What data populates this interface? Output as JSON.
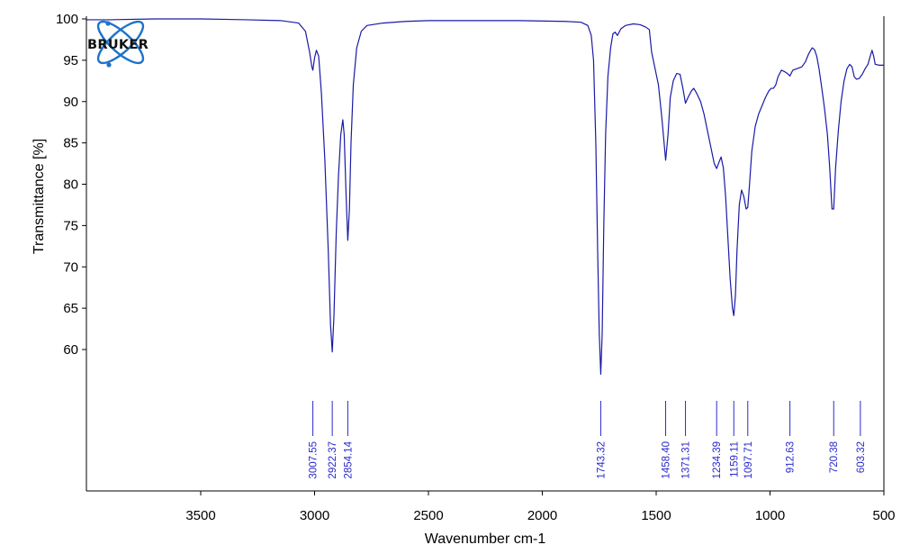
{
  "logo": {
    "text": "BRUKER",
    "color": "#1e73c8"
  },
  "colors": {
    "spectrum": "#1a1aa6",
    "peak_marker": "#2a2acc",
    "axis": "#000000"
  },
  "chart_data": {
    "type": "line",
    "title": "",
    "xlabel": "Wavenumber cm-1",
    "ylabel": "Transmittance [%]",
    "xlim": [
      4000,
      500
    ],
    "x_reversed": true,
    "ylim": [
      52,
      100
    ],
    "xticks": [
      3500,
      3000,
      2500,
      2000,
      1500,
      1000,
      500
    ],
    "xtick_labels": [
      "3500",
      "3000",
      "2500",
      "2000",
      "1500",
      "1000",
      "500"
    ],
    "yticks": [
      60,
      65,
      70,
      75,
      80,
      85,
      90,
      95,
      100
    ],
    "ytick_labels": [
      "60",
      "65",
      "70",
      "75",
      "80",
      "85",
      "90",
      "95",
      "100"
    ],
    "grid": false,
    "series": [
      {
        "points": [
          [
            4000,
            99.9
          ],
          [
            3900,
            99.9
          ],
          [
            3700,
            100.0
          ],
          [
            3500,
            100.0
          ],
          [
            3300,
            99.9
          ],
          [
            3150,
            99.8
          ],
          [
            3070,
            99.5
          ],
          [
            3040,
            98.5
          ],
          [
            3022,
            96.0
          ],
          [
            3012,
            94.2
          ],
          [
            3007.55,
            93.8
          ],
          [
            3000,
            95.3
          ],
          [
            2992,
            96.2
          ],
          [
            2982,
            95.5
          ],
          [
            2970,
            91.0
          ],
          [
            2955,
            83.0
          ],
          [
            2940,
            72.0
          ],
          [
            2930,
            63.0
          ],
          [
            2922.37,
            59.7
          ],
          [
            2915,
            64.0
          ],
          [
            2905,
            74.0
          ],
          [
            2895,
            81.0
          ],
          [
            2885,
            86.0
          ],
          [
            2876,
            87.8
          ],
          [
            2870,
            86.0
          ],
          [
            2862,
            79.0
          ],
          [
            2854.14,
            73.2
          ],
          [
            2847,
            77.0
          ],
          [
            2840,
            85.0
          ],
          [
            2830,
            92.0
          ],
          [
            2815,
            96.5
          ],
          [
            2795,
            98.5
          ],
          [
            2770,
            99.2
          ],
          [
            2700,
            99.5
          ],
          [
            2600,
            99.7
          ],
          [
            2500,
            99.8
          ],
          [
            2300,
            99.8
          ],
          [
            2100,
            99.8
          ],
          [
            1900,
            99.7
          ],
          [
            1830,
            99.6
          ],
          [
            1800,
            99.2
          ],
          [
            1785,
            98.0
          ],
          [
            1775,
            95.0
          ],
          [
            1765,
            85.0
          ],
          [
            1757,
            72.0
          ],
          [
            1750,
            62.0
          ],
          [
            1743.32,
            57.0
          ],
          [
            1737,
            62.0
          ],
          [
            1730,
            75.0
          ],
          [
            1722,
            86.0
          ],
          [
            1712,
            93.0
          ],
          [
            1700,
            96.5
          ],
          [
            1690,
            98.2
          ],
          [
            1680,
            98.4
          ],
          [
            1670,
            98.0
          ],
          [
            1655,
            98.8
          ],
          [
            1635,
            99.2
          ],
          [
            1600,
            99.4
          ],
          [
            1570,
            99.3
          ],
          [
            1545,
            99.0
          ],
          [
            1530,
            98.7
          ],
          [
            1520,
            96.0
          ],
          [
            1505,
            94.0
          ],
          [
            1490,
            92.0
          ],
          [
            1475,
            88.0
          ],
          [
            1458.4,
            82.9
          ],
          [
            1448,
            86.0
          ],
          [
            1438,
            90.5
          ],
          [
            1425,
            92.5
          ],
          [
            1410,
            93.4
          ],
          [
            1395,
            93.3
          ],
          [
            1382,
            91.5
          ],
          [
            1371.31,
            89.8
          ],
          [
            1360,
            90.5
          ],
          [
            1345,
            91.3
          ],
          [
            1335,
            91.6
          ],
          [
            1322,
            91.0
          ],
          [
            1305,
            90.0
          ],
          [
            1290,
            88.5
          ],
          [
            1275,
            86.5
          ],
          [
            1260,
            84.5
          ],
          [
            1245,
            82.5
          ],
          [
            1234.39,
            81.9
          ],
          [
            1225,
            82.6
          ],
          [
            1215,
            83.3
          ],
          [
            1205,
            82.0
          ],
          [
            1195,
            78.5
          ],
          [
            1185,
            73.5
          ],
          [
            1175,
            68.5
          ],
          [
            1165,
            65.0
          ],
          [
            1159.11,
            64.1
          ],
          [
            1152,
            66.5
          ],
          [
            1145,
            72.0
          ],
          [
            1135,
            77.5
          ],
          [
            1125,
            79.3
          ],
          [
            1115,
            78.5
          ],
          [
            1105,
            77.0
          ],
          [
            1097.71,
            77.2
          ],
          [
            1090,
            80.0
          ],
          [
            1080,
            84.0
          ],
          [
            1065,
            87.0
          ],
          [
            1050,
            88.5
          ],
          [
            1035,
            89.5
          ],
          [
            1020,
            90.5
          ],
          [
            1005,
            91.3
          ],
          [
            995,
            91.6
          ],
          [
            985,
            91.6
          ],
          [
            975,
            92.0
          ],
          [
            965,
            93.0
          ],
          [
            950,
            93.8
          ],
          [
            935,
            93.6
          ],
          [
            924,
            93.4
          ],
          [
            912.63,
            93.1
          ],
          [
            900,
            93.8
          ],
          [
            880,
            94.0
          ],
          [
            860,
            94.2
          ],
          [
            845,
            94.8
          ],
          [
            830,
            95.8
          ],
          [
            815,
            96.5
          ],
          [
            805,
            96.3
          ],
          [
            795,
            95.5
          ],
          [
            785,
            94.0
          ],
          [
            772,
            91.5
          ],
          [
            760,
            89.0
          ],
          [
            748,
            86.0
          ],
          [
            738,
            82.0
          ],
          [
            728,
            77.0
          ],
          [
            720.38,
            77.0
          ],
          [
            712,
            82.0
          ],
          [
            700,
            86.5
          ],
          [
            688,
            90.0
          ],
          [
            675,
            92.5
          ],
          [
            662,
            94.0
          ],
          [
            650,
            94.5
          ],
          [
            640,
            94.2
          ],
          [
            630,
            93.0
          ],
          [
            620,
            92.7
          ],
          [
            608,
            92.8
          ],
          [
            603.32,
            93.0
          ],
          [
            595,
            93.3
          ],
          [
            582,
            94.0
          ],
          [
            570,
            94.5
          ],
          [
            560,
            95.5
          ],
          [
            552,
            96.2
          ],
          [
            545,
            95.5
          ],
          [
            538,
            94.5
          ],
          [
            520,
            94.4
          ],
          [
            500,
            94.4
          ]
        ]
      }
    ],
    "peaks": [
      {
        "x": 3007.55,
        "label": "3007.55"
      },
      {
        "x": 2922.37,
        "label": "2922.37"
      },
      {
        "x": 2854.14,
        "label": "2854.14"
      },
      {
        "x": 1743.32,
        "label": "1743.32"
      },
      {
        "x": 1458.4,
        "label": "1458.40"
      },
      {
        "x": 1371.31,
        "label": "1371.31"
      },
      {
        "x": 1234.39,
        "label": "1234.39"
      },
      {
        "x": 1159.11,
        "label": "1159.11"
      },
      {
        "x": 1097.71,
        "label": "1097.71"
      },
      {
        "x": 912.63,
        "label": "912.63"
      },
      {
        "x": 720.38,
        "label": "720.38"
      },
      {
        "x": 603.32,
        "label": "603.32"
      }
    ]
  }
}
